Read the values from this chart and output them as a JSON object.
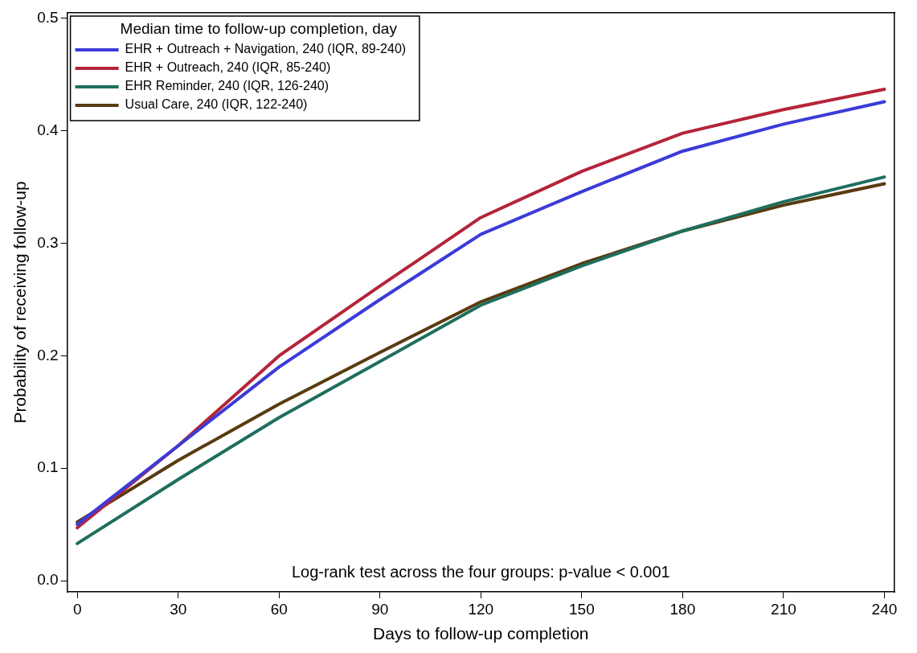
{
  "chart_data": {
    "type": "line",
    "xlabel": "Days to follow-up completion",
    "ylabel": "Probability of receiving follow-up",
    "legend_title": "Median time to follow-up completion, day",
    "x": [
      0,
      30,
      60,
      90,
      120,
      150,
      180,
      210,
      240
    ],
    "series": [
      {
        "name": "EHR + Outreach + Navigation, 240 (IQR, 89-240)",
        "color": "#3b3bd9",
        "values": [
          0.05,
          0.12,
          0.19,
          0.25,
          0.308,
          0.346,
          0.382,
          0.406,
          0.426
        ]
      },
      {
        "name": "EHR + Outreach, 240 (IQR, 85-240)",
        "color": "#b5243a",
        "values": [
          0.047,
          0.12,
          0.2,
          0.262,
          0.323,
          0.364,
          0.398,
          0.419,
          0.437
        ]
      },
      {
        "name": "EHR Reminder, 240 (IQR, 126-240)",
        "color": "#1e6e5e",
        "values": [
          0.033,
          0.09,
          0.145,
          0.195,
          0.245,
          0.28,
          0.311,
          0.337,
          0.359
        ]
      },
      {
        "name": "Usual Care, 240 (IQR, 122-240)",
        "color": "#5a3a10",
        "values": [
          0.052,
          0.107,
          0.157,
          0.203,
          0.248,
          0.282,
          0.311,
          0.334,
          0.353
        ]
      }
    ],
    "xlim": [
      -3,
      243
    ],
    "xticks": [
      0,
      30,
      60,
      90,
      120,
      150,
      180,
      210,
      240
    ],
    "ylim": [
      -0.01,
      0.505
    ],
    "yticks": [
      {
        "value": 0,
        "label": "0.0"
      },
      {
        "value": 0.1,
        "label": "0.1"
      },
      {
        "value": 0.2,
        "label": "0.2"
      },
      {
        "value": 0.3,
        "label": "0.3"
      },
      {
        "value": 0.4,
        "label": "0.4"
      },
      {
        "value": 0.5,
        "label": "0.5"
      }
    ],
    "annotations": [
      "Log-rank test across the four groups: p-value < 0.001"
    ],
    "grid": false,
    "legend": "top left",
    "marker": "none",
    "line_style": "solid"
  }
}
